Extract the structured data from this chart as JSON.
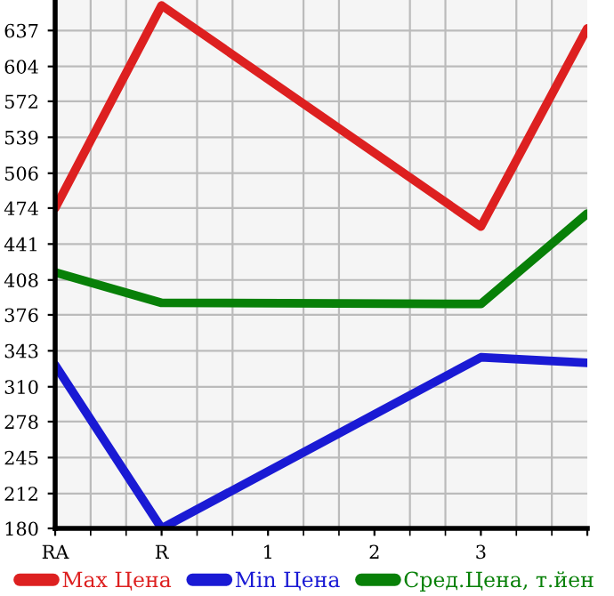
{
  "chart_data": {
    "type": "line",
    "categories": [
      "RA",
      "R",
      "1",
      "2",
      "3",
      null
    ],
    "series": [
      {
        "name": "Max Цена",
        "color": "#dd2020",
        "values": [
          474,
          660,
          null,
          null,
          457,
          639
        ]
      },
      {
        "name": "Min Цена",
        "color": "#1a1ad4",
        "values": [
          330,
          180,
          null,
          null,
          337,
          332
        ]
      },
      {
        "name": "Сред.Цена, т.йен",
        "color": "#088008",
        "values": [
          415,
          387,
          null,
          null,
          386,
          469
        ]
      }
    ],
    "ylim": [
      180,
      665
    ],
    "yticks": [
      180,
      212,
      245,
      278,
      310,
      343,
      376,
      408,
      441,
      474,
      506,
      539,
      572,
      604,
      637
    ],
    "grid": true,
    "legend": "bottom",
    "marker": "none",
    "line_style": "solid"
  }
}
